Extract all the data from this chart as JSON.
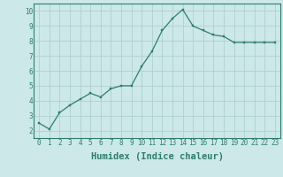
{
  "x": [
    0,
    1,
    2,
    3,
    4,
    5,
    6,
    7,
    8,
    9,
    10,
    11,
    12,
    13,
    14,
    15,
    16,
    17,
    18,
    19,
    20,
    21,
    22,
    23
  ],
  "y": [
    2.5,
    2.1,
    3.2,
    3.7,
    4.1,
    4.5,
    4.25,
    4.8,
    5.0,
    5.0,
    6.3,
    7.3,
    8.7,
    9.5,
    10.1,
    9.0,
    8.7,
    8.4,
    8.3,
    7.9,
    7.9,
    7.9,
    7.9,
    7.9
  ],
  "xlabel": "Humidex (Indice chaleur)",
  "line_color": "#2e7d6e",
  "marker_color": "#2e7d6e",
  "bg_color": "#cce8e8",
  "grid_color": "#b0d0d0",
  "xlim": [
    -0.5,
    23.5
  ],
  "ylim": [
    1.5,
    10.5
  ],
  "yticks": [
    2,
    3,
    4,
    5,
    6,
    7,
    8,
    9,
    10
  ],
  "xticks": [
    0,
    1,
    2,
    3,
    4,
    5,
    6,
    7,
    8,
    9,
    10,
    11,
    12,
    13,
    14,
    15,
    16,
    17,
    18,
    19,
    20,
    21,
    22,
    23
  ],
  "tick_fontsize": 5.5,
  "xlabel_fontsize": 7.5,
  "border_color": "#2e7d6e"
}
